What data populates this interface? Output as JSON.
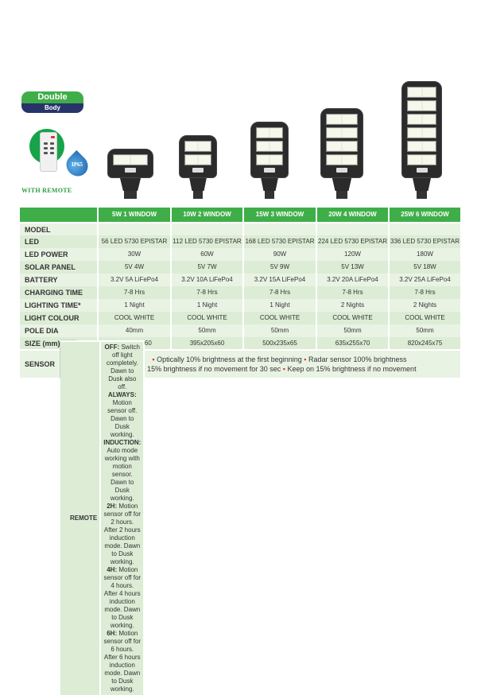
{
  "badge": {
    "top": "Double",
    "bottom": "Body"
  },
  "remote_label": "With Remote",
  "ip_rating": "IP65",
  "lamps": [
    {
      "windows": 1
    },
    {
      "windows": 2
    },
    {
      "windows": 3
    },
    {
      "windows": 4
    },
    {
      "windows": 6
    }
  ],
  "table": {
    "columns": [
      "5W 1 WINDOW",
      "10W 2 WINDOW",
      "15W 3 WINDOW",
      "20W 4 WINDOW",
      "25W 6 WINDOW"
    ],
    "rows": [
      {
        "label": "MODEL",
        "values": [
          "",
          "",
          "",
          "",
          ""
        ]
      },
      {
        "label": "LED",
        "values": [
          "56 LED 5730 EPISTAR",
          "112 LED 5730 EPISTAR",
          "168 LED 5730 EPISTAR",
          "224 LED 5730 EPISTAR",
          "336 LED 5730 EPISTAR"
        ]
      },
      {
        "label": "LED POWER",
        "values": [
          "30W",
          "60W",
          "90W",
          "120W",
          "180W"
        ]
      },
      {
        "label": "SOLAR PANEL",
        "values": [
          "5V 4W",
          "5V 7W",
          "5V 9W",
          "5V 13W",
          "5V 18W"
        ]
      },
      {
        "label": "BATTERY",
        "values": [
          "3.2V 5A LiFePo4",
          "3.2V 10A LiFePo4",
          "3.2V 15A LiFePo4",
          "3.2V 20A LiFePo4",
          "3.2V 25A LiFePo4"
        ]
      },
      {
        "label": "CHARGING TIME",
        "values": [
          "7-8 Hrs",
          "7-8 Hrs",
          "7-8 Hrs",
          "7-8 Hrs",
          "7-8 Hrs"
        ]
      },
      {
        "label": "LIGHTING TIME*",
        "values": [
          "1 Night",
          "1 Night",
          "1 Night",
          "2 Nights",
          "2 Nights"
        ]
      },
      {
        "label": "LIGHT COLOUR",
        "values": [
          "COOL WHITE",
          "COOL WHITE",
          "COOL WHITE",
          "COOL WHITE",
          "COOL WHITE"
        ]
      },
      {
        "label": "POLE DIA",
        "values": [
          "40mm",
          "50mm",
          "50mm",
          "50mm",
          "50mm"
        ]
      },
      {
        "label": "SIZE (mm)",
        "values": [
          "300x210x60",
          "395x205x60",
          "500x235x65",
          "635x255x70",
          "820x245x75"
        ]
      }
    ],
    "sensor": {
      "label": "SENSOR",
      "items": [
        "Optically 10% brightness at the first beginning",
        "Radar sensor 100% brightness",
        "15% brightness if no movement for 30 sec",
        "Keep on 15% brightness if no movement"
      ]
    },
    "remote": {
      "label": "REMOTE",
      "lines": [
        [
          {
            "k": "OFF:",
            "v": " Switch off light completely. Dawn to Dusk also off. "
          },
          {
            "k": "ALWAYS:",
            "v": " Motion sensor off. Dawn to Dusk working."
          }
        ],
        [
          {
            "k": "INDUCTION:",
            "v": " Auto mode working with motion sensor. Dawn to Dusk working."
          }
        ],
        [
          {
            "k": "2H:",
            "v": " Motion sensor off for 2 hours. After 2 hours induction mode. Dawn to Dusk working."
          }
        ],
        [
          {
            "k": "4H:",
            "v": " Motion sensor off for 4 hours. After 4 hours induction mode. Dawn to Dusk working."
          }
        ],
        [
          {
            "k": "6H:",
            "v": " Motion sensor off for 6 hours. After 6 hours induction mode. Dawn to Dusk working."
          }
        ]
      ]
    }
  }
}
